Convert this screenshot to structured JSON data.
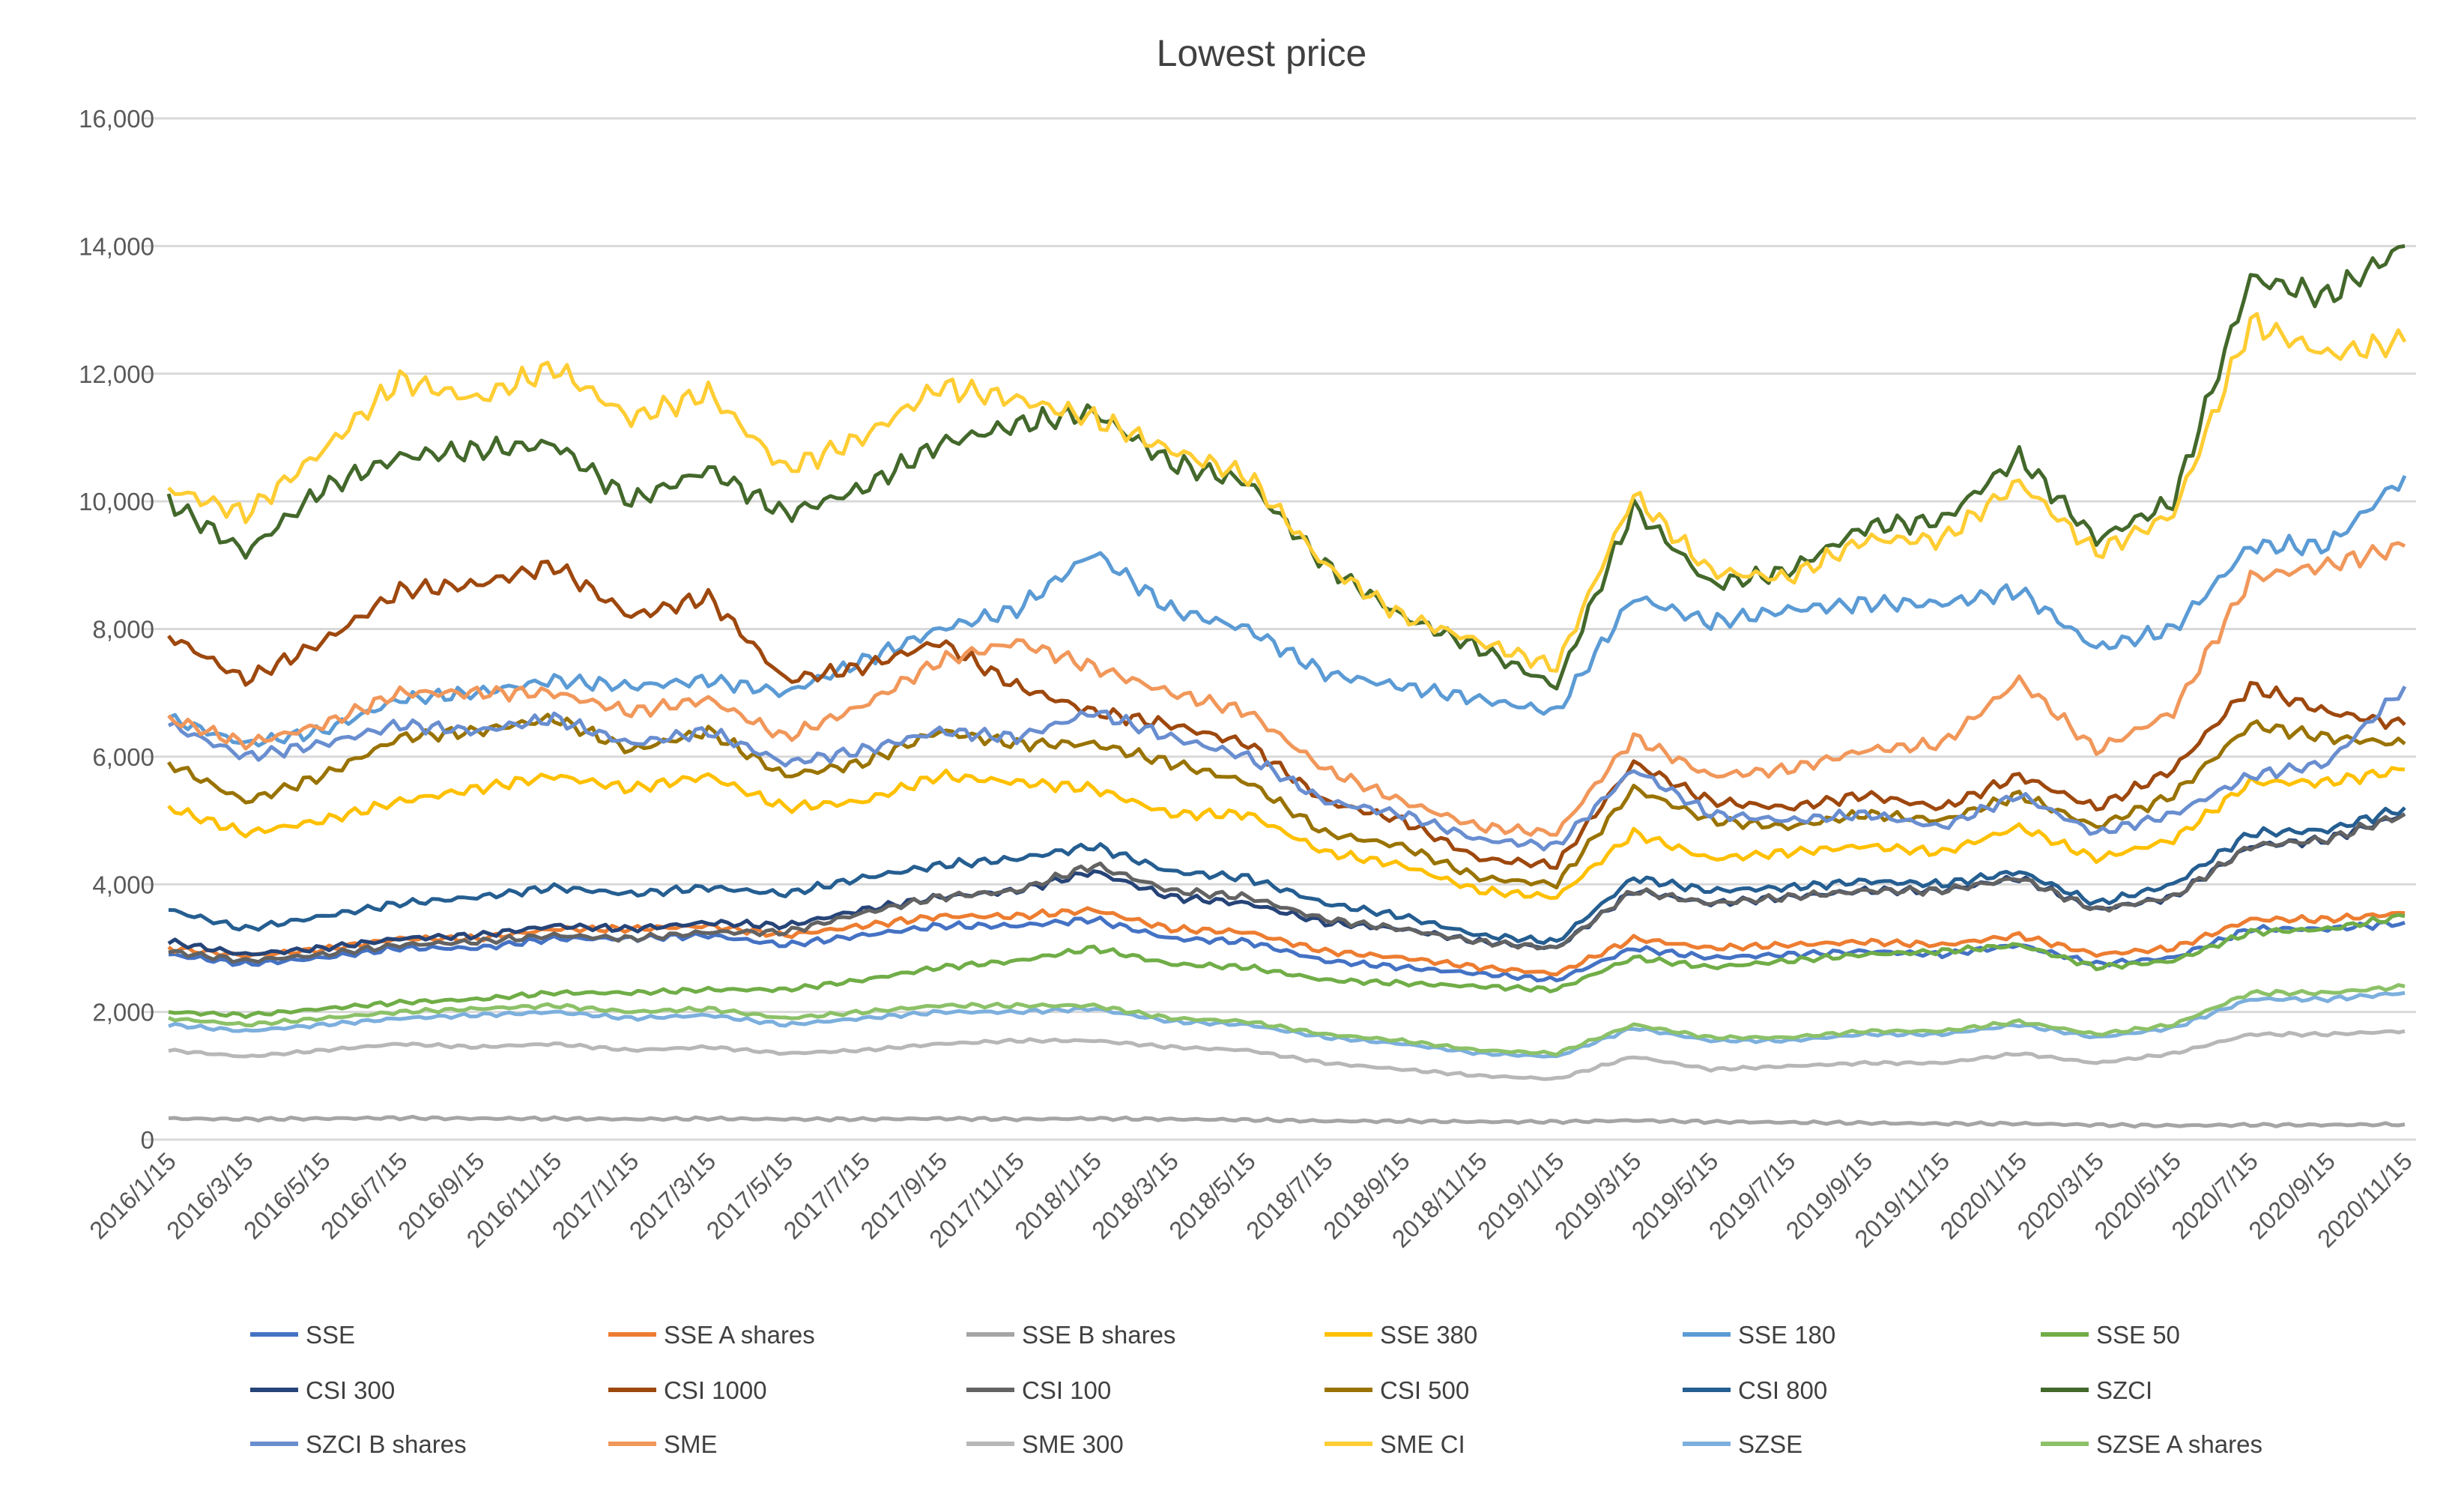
{
  "chart_data": {
    "type": "line",
    "title": "Lowest price",
    "xlabel": "",
    "ylabel": "",
    "ylim": [
      0,
      16000
    ],
    "y_ticks": [
      0,
      2000,
      4000,
      6000,
      8000,
      10000,
      12000,
      14000,
      16000
    ],
    "y_tick_labels": [
      "0",
      "2,000",
      "4,000",
      "6,000",
      "8,000",
      "10,000",
      "12,000",
      "14,000",
      "16,000"
    ],
    "grid": true,
    "legend_position": "bottom",
    "x": [
      "2016/1/15",
      "2016/3/15",
      "2016/5/15",
      "2016/7/15",
      "2016/9/15",
      "2016/11/15",
      "2017/1/15",
      "2017/3/15",
      "2017/5/15",
      "2017/7/15",
      "2017/9/15",
      "2017/11/15",
      "2018/1/15",
      "2018/3/15",
      "2018/5/15",
      "2018/7/15",
      "2018/9/15",
      "2018/11/15",
      "2019/1/15",
      "2019/3/15",
      "2019/5/15",
      "2019/7/15",
      "2019/9/15",
      "2019/11/15",
      "2020/1/15",
      "2020/3/15",
      "2020/5/15",
      "2020/7/15",
      "2020/9/15",
      "2020/11/15"
    ],
    "series": [
      {
        "name": "SSE",
        "color": "#4472C4",
        "values": [
          2900,
          2750,
          2850,
          3000,
          3000,
          3150,
          3150,
          3200,
          3050,
          3200,
          3350,
          3350,
          3450,
          3150,
          3100,
          2800,
          2700,
          2600,
          2500,
          3000,
          2850,
          2900,
          2950,
          2900,
          3050,
          2750,
          2850,
          3300,
          3300,
          3400
        ]
      },
      {
        "name": "SSE A shares",
        "color": "#ED7D31",
        "values": [
          3000,
          2880,
          2980,
          3150,
          3150,
          3300,
          3300,
          3350,
          3200,
          3350,
          3500,
          3500,
          3600,
          3300,
          3250,
          2950,
          2850,
          2700,
          2600,
          3150,
          3000,
          3050,
          3100,
          3050,
          3200,
          2900,
          3000,
          3450,
          3450,
          3550
        ]
      },
      {
        "name": "SSE B shares",
        "color": "#A5A5A5",
        "values": [
          330,
          320,
          330,
          340,
          330,
          330,
          320,
          330,
          320,
          320,
          330,
          320,
          330,
          320,
          310,
          290,
          290,
          280,
          280,
          300,
          280,
          270,
          260,
          250,
          250,
          230,
          220,
          230,
          230,
          240
        ]
      },
      {
        "name": "SSE 380",
        "color": "#FFC000",
        "values": [
          5200,
          4800,
          5000,
          5300,
          5500,
          5700,
          5500,
          5700,
          5200,
          5300,
          5700,
          5600,
          5500,
          5100,
          5100,
          4500,
          4300,
          3900,
          3800,
          4800,
          4400,
          4500,
          4600,
          4500,
          4900,
          4400,
          4700,
          5600,
          5600,
          5800
        ]
      },
      {
        "name": "SSE 180",
        "color": "#5B9BD5",
        "values": [
          6600,
          6200,
          6400,
          6900,
          7000,
          7200,
          7100,
          7200,
          7000,
          7500,
          8000,
          8300,
          9200,
          8300,
          8000,
          7300,
          7100,
          6900,
          6700,
          8500,
          8100,
          8300,
          8400,
          8400,
          8600,
          7700,
          8000,
          9300,
          9300,
          10400
        ]
      },
      {
        "name": "SSE 50",
        "color": "#70AD47",
        "values": [
          2000,
          1950,
          2050,
          2150,
          2200,
          2300,
          2300,
          2350,
          2350,
          2500,
          2700,
          2800,
          3000,
          2750,
          2700,
          2500,
          2450,
          2400,
          2350,
          2850,
          2700,
          2800,
          2900,
          2950,
          3050,
          2700,
          2800,
          3250,
          3300,
          3500
        ]
      },
      {
        "name": "CSI 300",
        "color": "#264478",
        "values": [
          3100,
          2900,
          3000,
          3150,
          3200,
          3350,
          3300,
          3400,
          3350,
          3600,
          3800,
          3900,
          4200,
          3800,
          3700,
          3400,
          3300,
          3100,
          3000,
          3900,
          3700,
          3800,
          3900,
          3900,
          4100,
          3600,
          3800,
          4600,
          4700,
          5100
        ]
      },
      {
        "name": "CSI 1000",
        "color": "#9E480E",
        "values": [
          7900,
          7200,
          7800,
          8600,
          8700,
          9000,
          8200,
          8500,
          7200,
          7400,
          7800,
          7100,
          6700,
          6500,
          6200,
          5300,
          5000,
          4400,
          4300,
          5900,
          5300,
          5200,
          5400,
          5200,
          5700,
          5200,
          5800,
          7100,
          6700,
          6500
        ]
      },
      {
        "name": "CSI 100",
        "color": "#636363",
        "values": [
          2950,
          2800,
          2900,
          3050,
          3100,
          3200,
          3150,
          3250,
          3250,
          3550,
          3800,
          3900,
          4300,
          3900,
          3800,
          3450,
          3300,
          3100,
          3000,
          3900,
          3700,
          3800,
          3900,
          3900,
          4100,
          3600,
          3800,
          4600,
          4700,
          5100
        ]
      },
      {
        "name": "CSI 500",
        "color": "#997300",
        "values": [
          5900,
          5300,
          5700,
          6300,
          6400,
          6600,
          6100,
          6400,
          5700,
          5900,
          6400,
          6200,
          6200,
          5900,
          5600,
          4800,
          4600,
          4100,
          4000,
          5500,
          5000,
          4900,
          5100,
          5000,
          5400,
          4900,
          5400,
          6500,
          6300,
          6200
        ]
      },
      {
        "name": "CSI 800",
        "color": "#255E91",
        "values": [
          3600,
          3300,
          3500,
          3700,
          3800,
          3950,
          3850,
          3950,
          3850,
          4100,
          4300,
          4400,
          4600,
          4200,
          4100,
          3700,
          3500,
          3200,
          3100,
          4100,
          3900,
          3950,
          4050,
          4000,
          4200,
          3700,
          4000,
          4800,
          4850,
          5200
        ]
      },
      {
        "name": "SZCI",
        "color": "#43682B",
        "values": [
          10000,
          9200,
          10200,
          10700,
          10800,
          10900,
          10000,
          10500,
          9800,
          10200,
          10900,
          11200,
          11400,
          10600,
          10300,
          9000,
          8200,
          7700,
          7100,
          9900,
          8700,
          8900,
          9600,
          9700,
          10700,
          9400,
          10000,
          13500,
          13200,
          14000
        ]
      },
      {
        "name": "SZCI B shares",
        "color": "#698ED0",
        "values": [
          6500,
          6000,
          6200,
          6500,
          6400,
          6600,
          6200,
          6400,
          5900,
          6100,
          6400,
          6300,
          6700,
          6300,
          6000,
          5300,
          5100,
          4700,
          4600,
          5800,
          5100,
          5000,
          5100,
          4900,
          5400,
          4800,
          5100,
          5700,
          5900,
          7100
        ]
      },
      {
        "name": "SME",
        "color": "#F1975A",
        "values": [
          6600,
          6200,
          6500,
          7000,
          7000,
          7000,
          6700,
          6900,
          6300,
          6800,
          7500,
          7800,
          7400,
          7000,
          6700,
          5800,
          5300,
          4900,
          4800,
          6300,
          5700,
          5800,
          6100,
          6200,
          7200,
          6100,
          6700,
          8800,
          9000,
          9300
        ]
      },
      {
        "name": "SME 300",
        "color": "#B7B7B7",
        "values": [
          1400,
          1300,
          1400,
          1500,
          1450,
          1500,
          1400,
          1450,
          1350,
          1400,
          1500,
          1550,
          1550,
          1450,
          1400,
          1200,
          1100,
          1000,
          950,
          1300,
          1100,
          1150,
          1200,
          1200,
          1350,
          1200,
          1350,
          1650,
          1650,
          1700
        ]
      },
      {
        "name": "SME CI",
        "color": "#FFCD33",
        "values": [
          10200,
          9800,
          10800,
          11900,
          11600,
          12100,
          11300,
          11700,
          10500,
          11000,
          11800,
          11600,
          11300,
          10800,
          10400,
          9000,
          8200,
          7800,
          7400,
          10100,
          8900,
          8800,
          9400,
          9400,
          10300,
          9200,
          9800,
          12800,
          12300,
          12500
        ]
      },
      {
        "name": "SZSE",
        "color": "#7CAFDD",
        "values": [
          1800,
          1700,
          1800,
          1900,
          1950,
          2000,
          1900,
          1950,
          1800,
          1900,
          2000,
          2000,
          2050,
          1850,
          1800,
          1600,
          1500,
          1350,
          1300,
          1750,
          1550,
          1550,
          1650,
          1650,
          1800,
          1600,
          1750,
          2200,
          2200,
          2300
        ]
      },
      {
        "name": "SZSE A shares",
        "color": "#8CC168",
        "values": [
          1900,
          1800,
          1900,
          2000,
          2050,
          2100,
          2000,
          2050,
          1900,
          2000,
          2100,
          2100,
          2100,
          1900,
          1850,
          1650,
          1550,
          1400,
          1350,
          1800,
          1600,
          1600,
          1700,
          1700,
          1850,
          1650,
          1800,
          2300,
          2300,
          2400
        ]
      }
    ]
  }
}
